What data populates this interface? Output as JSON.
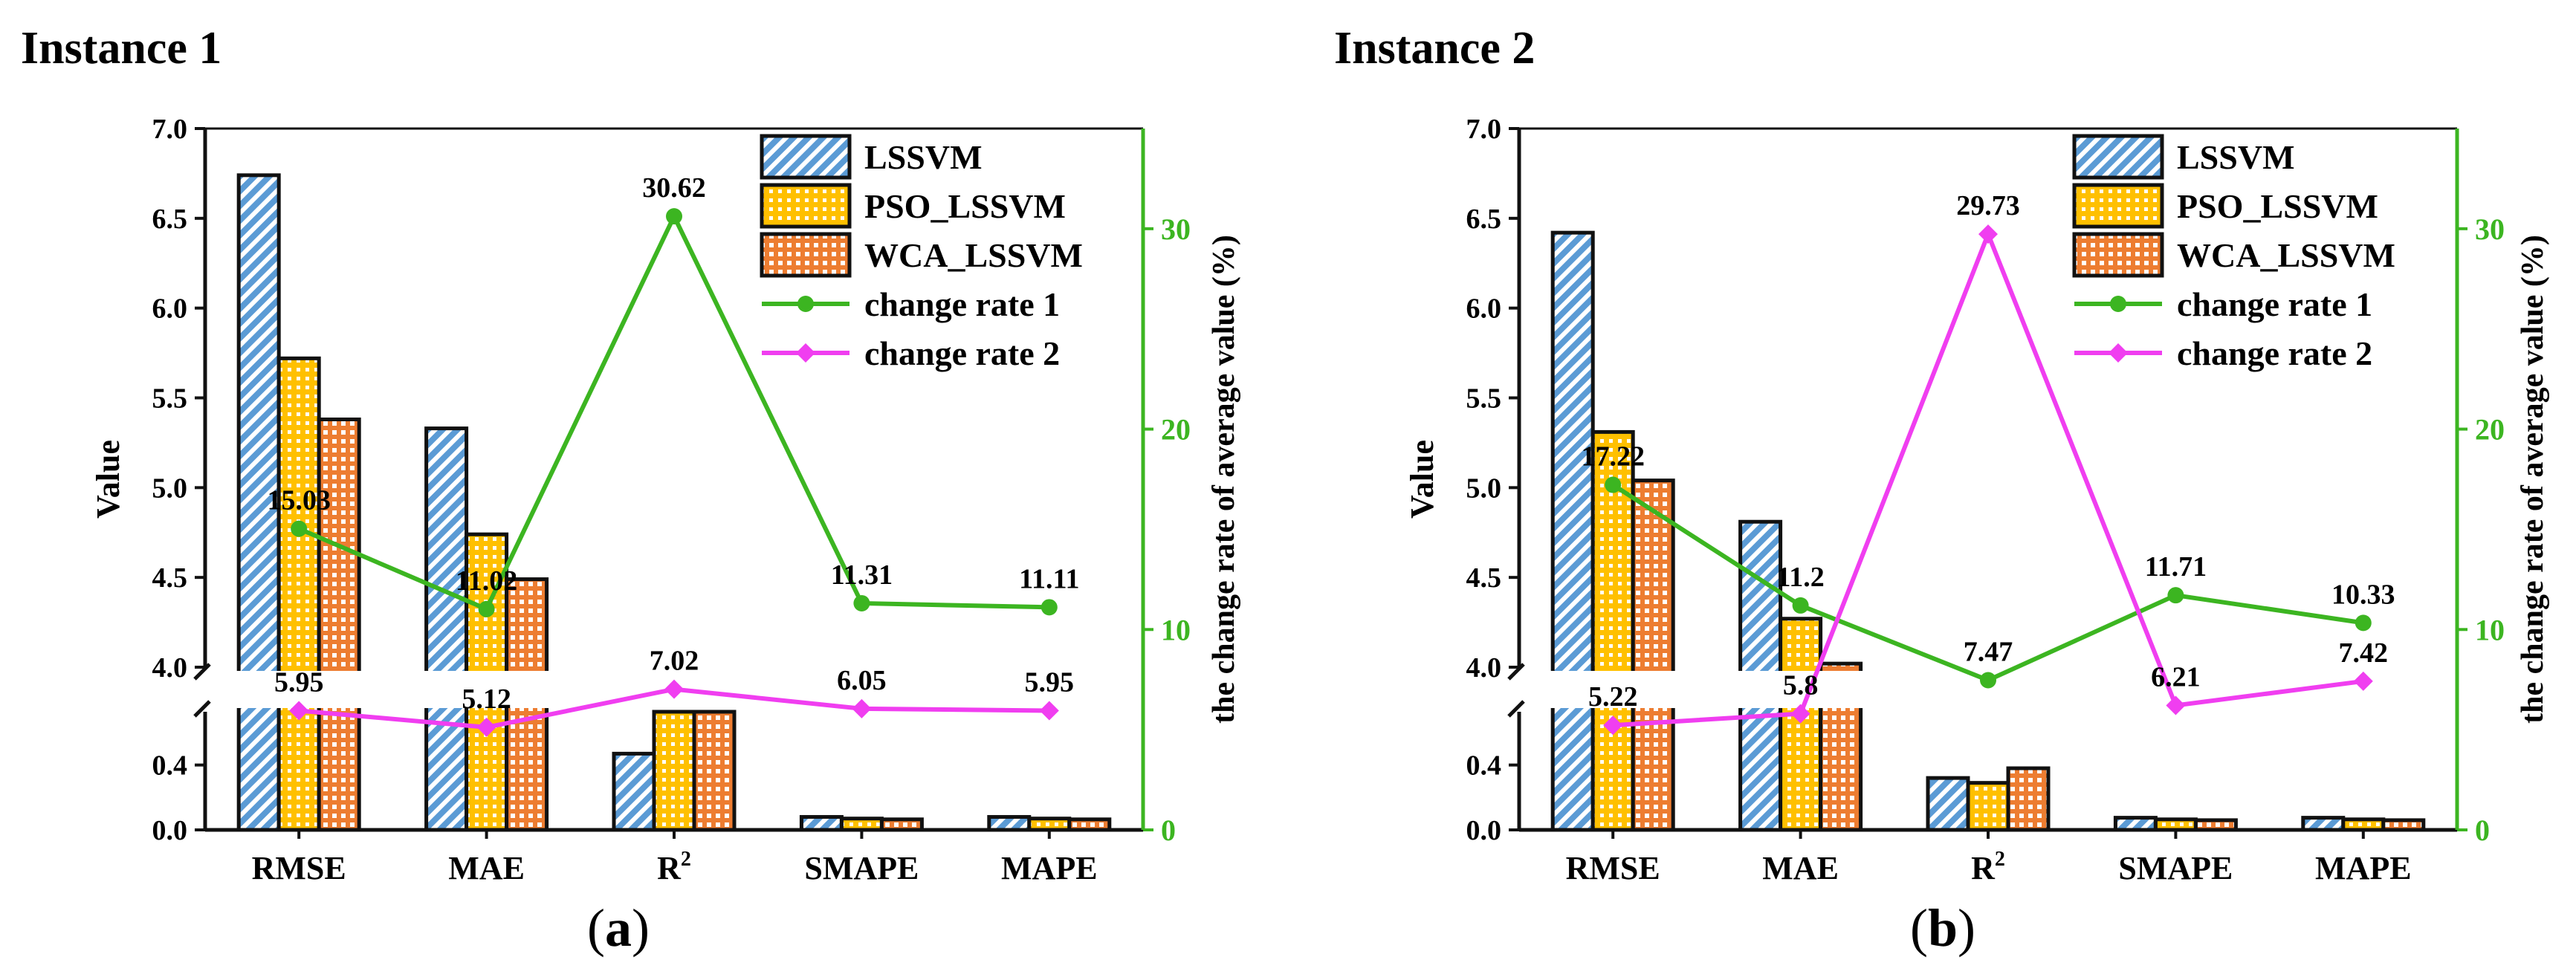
{
  "colors": {
    "lssvm": "#5b9bd5",
    "pso": "#ffc000",
    "wca": "#ed7d31",
    "rate1": "#3cb521",
    "rate2": "#f03ef0",
    "right_axis": "#3cb521"
  },
  "panels": [
    {
      "title": "Instance 1",
      "caption_open": "(",
      "caption_letter": "a",
      "caption_close": ")"
    },
    {
      "title": "Instance 2",
      "caption_open": "(",
      "caption_letter": "b",
      "caption_close": ")"
    }
  ],
  "chart_data": [
    {
      "type": "bar",
      "title": "Instance 1",
      "ylabel": "Value",
      "y2label": "the change rate of average value (%)",
      "categories": [
        "RMSE",
        "MAE",
        "R2",
        "SMAPE",
        "MAPE"
      ],
      "category_labels": [
        "RMSE",
        "MAE",
        "R",
        "SMAPE",
        "MAPE"
      ],
      "category_superscripts": [
        "",
        "",
        "2",
        "",
        ""
      ],
      "y_axis_break": {
        "lower_range": [
          0,
          0.6
        ],
        "upper_range": [
          4.0,
          7.0
        ]
      },
      "y_ticks_lower": [
        "0.0",
        "0.4"
      ],
      "y_ticks_upper": [
        "4.0",
        "4.5",
        "5.0",
        "5.5",
        "6.0",
        "6.5",
        "7.0"
      ],
      "y2lim": [
        0,
        35
      ],
      "y2_ticks": [
        "0",
        "10",
        "20",
        "30"
      ],
      "legend_position": "top-right",
      "series": [
        {
          "name": "LSSVM",
          "kind": "bar",
          "values": [
            6.74,
            5.33,
            0.47,
            0.08,
            0.08
          ]
        },
        {
          "name": "PSO_LSSVM",
          "kind": "bar",
          "values": [
            5.72,
            4.74,
            0.61,
            0.07,
            0.07
          ]
        },
        {
          "name": "WCA_LSSVM",
          "kind": "bar",
          "values": [
            5.38,
            4.49,
            0.65,
            0.065,
            0.065
          ]
        },
        {
          "name": "change rate 1",
          "kind": "line",
          "axis": "right",
          "values": [
            15.03,
            11.02,
            30.62,
            11.31,
            11.11
          ],
          "labels": [
            "15.03",
            "11.02",
            "30.62",
            "11.31",
            "11.11"
          ]
        },
        {
          "name": "change rate 2",
          "kind": "line",
          "axis": "right",
          "values": [
            5.95,
            5.12,
            7.02,
            6.05,
            5.95
          ],
          "labels": [
            "5.95",
            "5.12",
            "7.02",
            "6.05",
            "5.95"
          ]
        }
      ]
    },
    {
      "type": "bar",
      "title": "Instance 2",
      "ylabel": "Value",
      "y2label": "the change rate of average value (%)",
      "categories": [
        "RMSE",
        "MAE",
        "R2",
        "SMAPE",
        "MAPE"
      ],
      "category_labels": [
        "RMSE",
        "MAE",
        "R",
        "SMAPE",
        "MAPE"
      ],
      "category_superscripts": [
        "",
        "",
        "2",
        "",
        ""
      ],
      "y_axis_break": {
        "lower_range": [
          0,
          0.6
        ],
        "upper_range": [
          4.0,
          7.0
        ]
      },
      "y_ticks_lower": [
        "0.0",
        "0.4"
      ],
      "y_ticks_upper": [
        "4.0",
        "4.5",
        "5.0",
        "5.5",
        "6.0",
        "6.5",
        "7.0"
      ],
      "y2lim": [
        0,
        35
      ],
      "y2_ticks": [
        "0",
        "10",
        "20",
        "30"
      ],
      "legend_position": "top-right",
      "series": [
        {
          "name": "LSSVM",
          "kind": "bar",
          "values": [
            6.42,
            4.81,
            0.32,
            0.075,
            0.075
          ]
        },
        {
          "name": "PSO_LSSVM",
          "kind": "bar",
          "values": [
            5.31,
            4.27,
            0.29,
            0.065,
            0.065
          ]
        },
        {
          "name": "WCA_LSSVM",
          "kind": "bar",
          "values": [
            5.04,
            4.02,
            0.38,
            0.06,
            0.06
          ]
        },
        {
          "name": "change rate 1",
          "kind": "line",
          "axis": "right",
          "values": [
            17.22,
            11.2,
            7.47,
            11.71,
            10.33
          ],
          "labels": [
            "17.22",
            "11.2",
            "7.47",
            "11.71",
            "10.33"
          ]
        },
        {
          "name": "change rate 2",
          "kind": "line",
          "axis": "right",
          "values": [
            5.22,
            5.8,
            29.73,
            6.21,
            7.42
          ],
          "labels": [
            "5.22",
            "5.8",
            "29.73",
            "6.21",
            "7.42"
          ]
        }
      ]
    }
  ]
}
